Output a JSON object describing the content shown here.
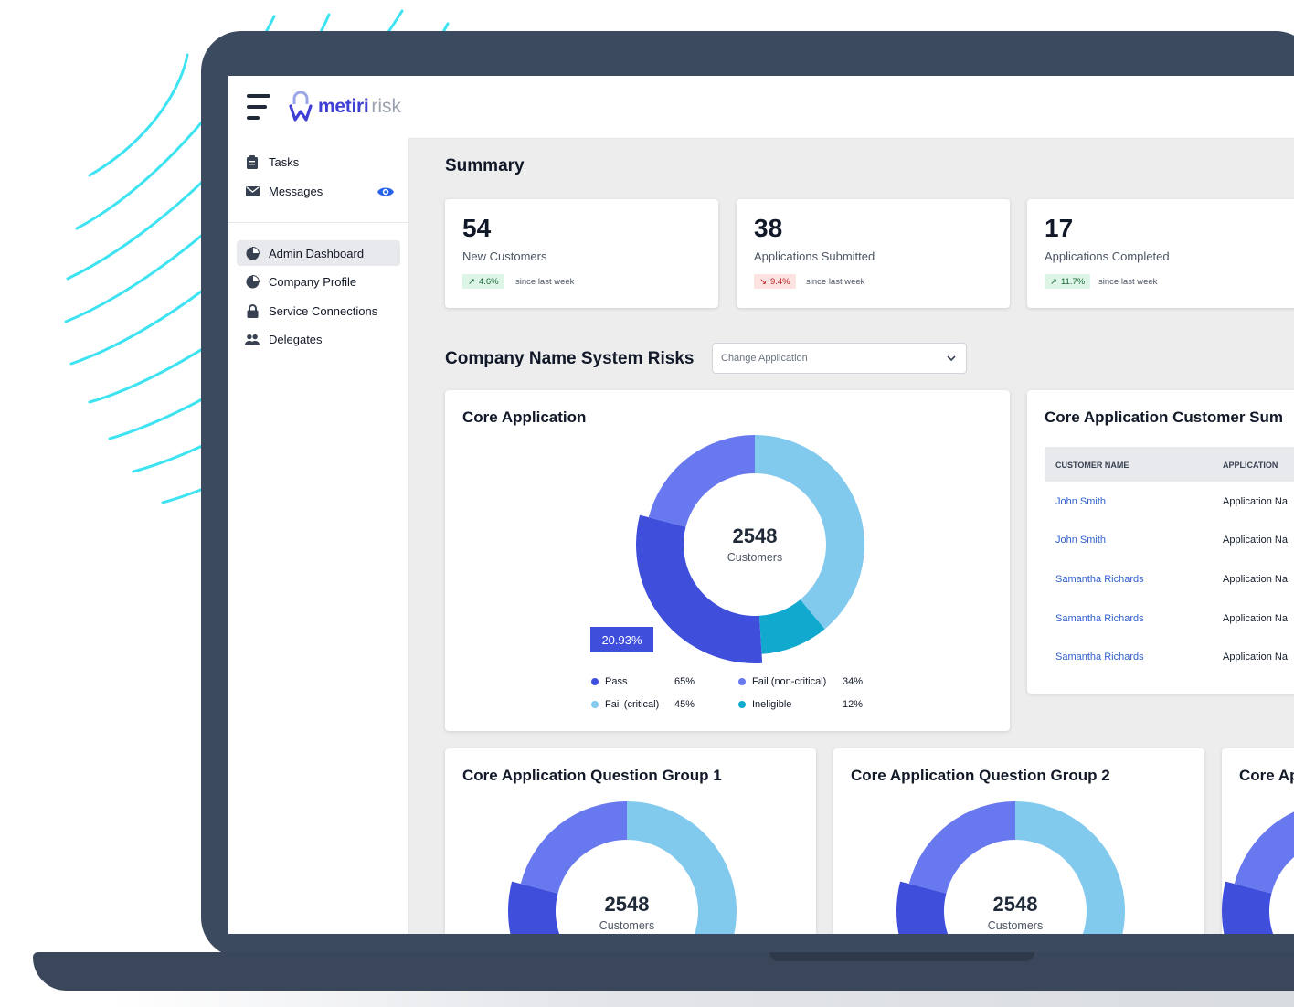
{
  "app": {
    "logo_name": "metiri",
    "logo_suffix": "risk"
  },
  "sidebar": {
    "top_items": [
      {
        "label": "Tasks",
        "icon": "clipboard-icon"
      },
      {
        "label": "Messages",
        "icon": "envelope-icon",
        "badge_icon": "eye-icon"
      }
    ],
    "admin_items": [
      {
        "label": "Admin Dashboard",
        "icon": "pie-chart-icon",
        "active": true
      },
      {
        "label": "Company Profile",
        "icon": "pie-chart-icon"
      },
      {
        "label": "Service Connections",
        "icon": "lock-icon"
      },
      {
        "label": "Delegates",
        "icon": "users-icon"
      }
    ]
  },
  "summary": {
    "title": "Summary",
    "cards": [
      {
        "value": "54",
        "label": "New Customers",
        "change": "4.6%",
        "direction": "up",
        "since": "since last week"
      },
      {
        "value": "38",
        "label": "Applications Submitted",
        "change": "9.4%",
        "direction": "down",
        "since": "since last week"
      },
      {
        "value": "17",
        "label": "Applications Completed",
        "change": "11.7%",
        "direction": "up",
        "since": "since last week"
      }
    ]
  },
  "risks": {
    "title": "Company Name System Risks",
    "select_placeholder": "Change Application"
  },
  "core_app": {
    "title": "Core Application",
    "center_value": "2548",
    "center_label": "Customers",
    "tooltip": "20.93%",
    "legend": [
      {
        "label": "Pass",
        "pct": "65%",
        "color": "#3f4fdc"
      },
      {
        "label": "Fail (non-critical)",
        "pct": "34%",
        "color": "#6878ee"
      },
      {
        "label": "Fail (critical)",
        "pct": "45%",
        "color": "#82c9ee"
      },
      {
        "label": "Ineligible",
        "pct": "12%",
        "color": "#12a9cf"
      }
    ]
  },
  "chart_data": {
    "type": "pie",
    "title": "Core Application",
    "categories": [
      "Pass",
      "Fail (non-critical)",
      "Fail (critical)",
      "Ineligible"
    ],
    "values": [
      65,
      34,
      45,
      12
    ],
    "slice_shares": {
      "Fail (critical)": 0.39,
      "Ineligible": 0.1,
      "Pass": 0.3,
      "Fail (non-critical)": 0.21
    },
    "highlighted_value": "20.93%",
    "center_value": 2548,
    "center_label": "Customers"
  },
  "customer_summary": {
    "title": "Core Application Customer Sum",
    "columns": [
      "CUSTOMER NAME",
      "APPLICATION"
    ],
    "rows": [
      {
        "name": "John Smith",
        "application": "Application Na"
      },
      {
        "name": "John Smith",
        "application": "Application Na"
      },
      {
        "name": "Samantha Richards",
        "application": "Application Na"
      },
      {
        "name": "Samantha Richards",
        "application": "Application Na"
      },
      {
        "name": "Samantha Richards",
        "application": "Application Na"
      }
    ]
  },
  "question_groups": [
    {
      "title": "Core Application Question Group 1",
      "center_value": "2548",
      "center_label": "Customers"
    },
    {
      "title": "Core Application Question Group 2",
      "center_value": "2548",
      "center_label": "Customers"
    },
    {
      "title": "Core Ap"
    }
  ],
  "colors": {
    "pass": "#3f4fdc",
    "fail_non_critical": "#6878ee",
    "fail_critical": "#82c9ee",
    "ineligible": "#12a9cf",
    "accent": "#3f3fd6",
    "frame": "#3c4a5f"
  }
}
